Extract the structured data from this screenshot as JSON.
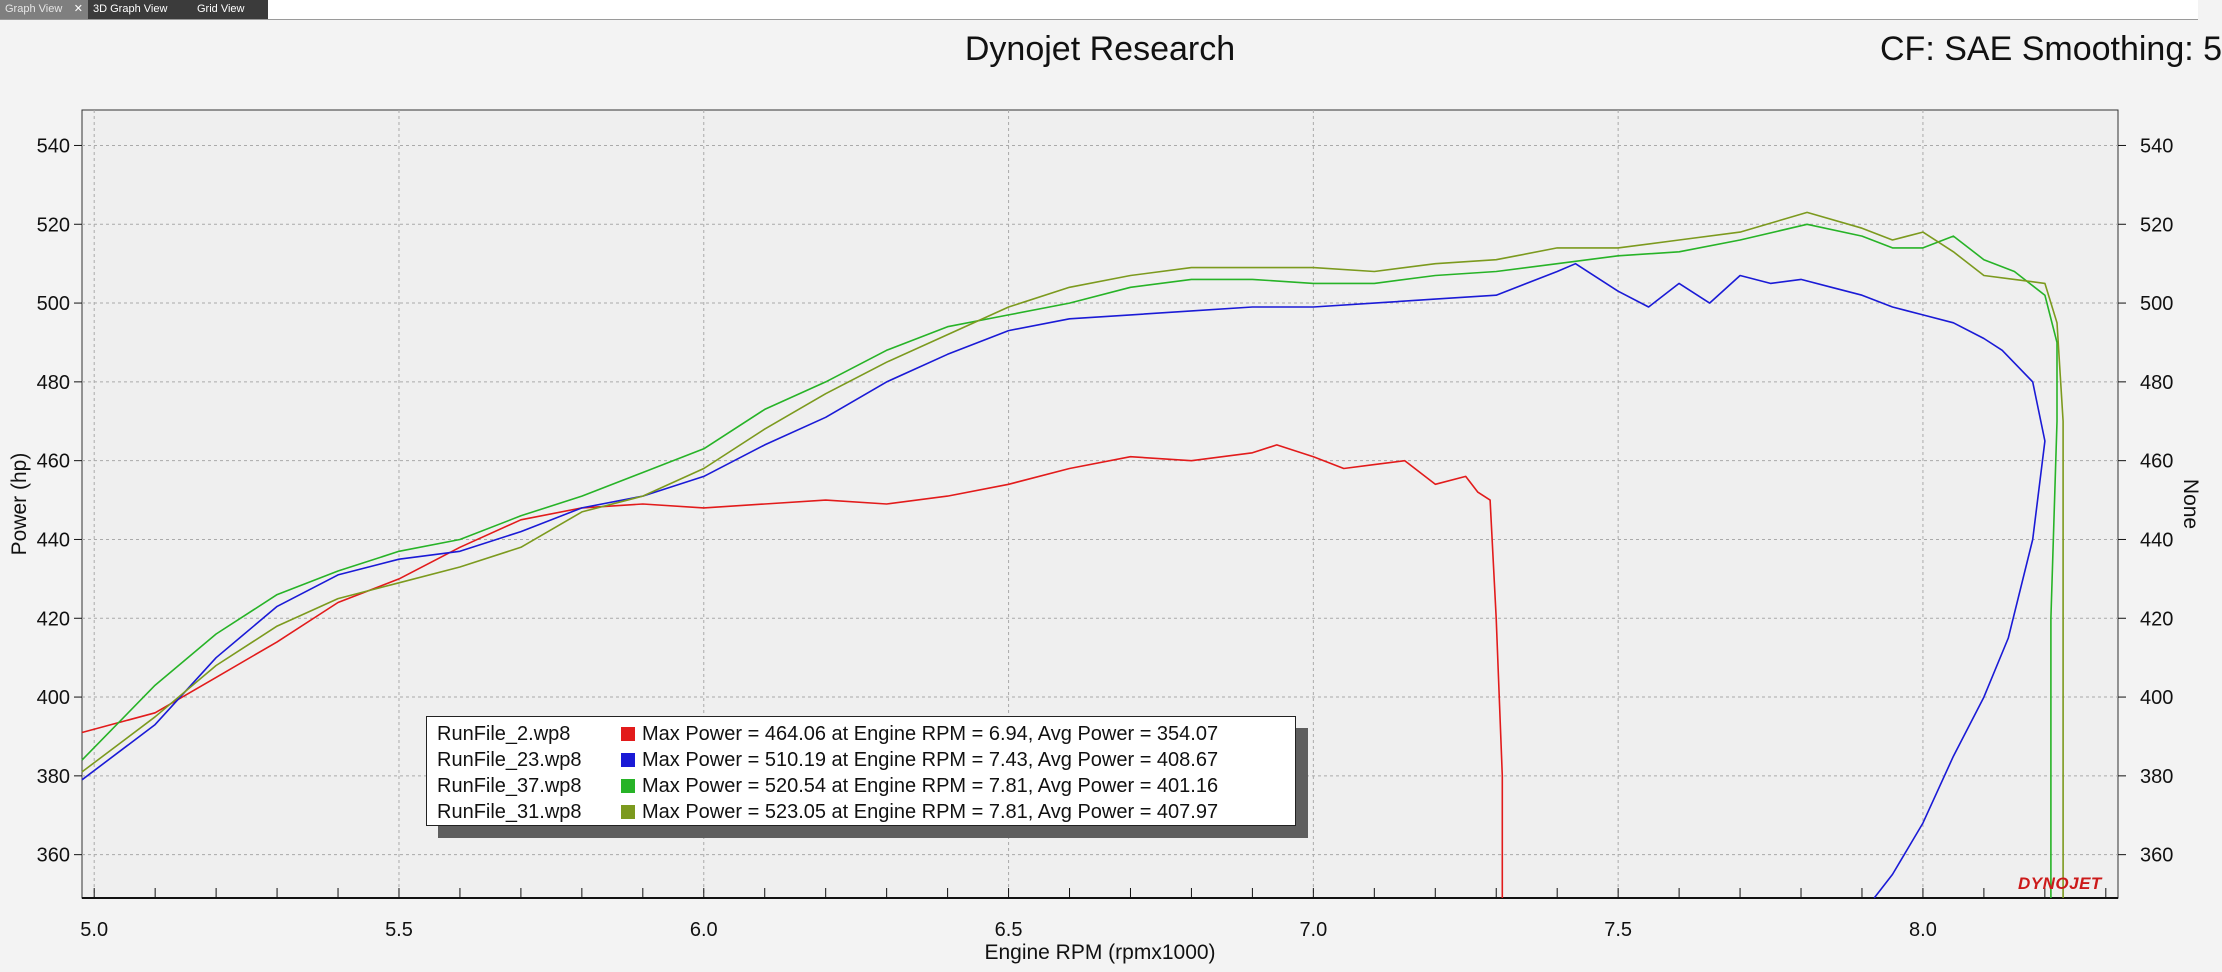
{
  "tabs": [
    {
      "label": "Graph View",
      "active": true,
      "closable": true
    },
    {
      "label": "3D Graph View",
      "active": false
    },
    {
      "label": "Grid View",
      "active": false
    }
  ],
  "header": {
    "title": "Dynojet Research",
    "cf_label": "CF: SAE Smoothing: 5"
  },
  "logo_text": "DYNOJET",
  "chart_data": {
    "type": "line",
    "title": "Dynojet Research",
    "xlabel": "Engine RPM (rpmx1000)",
    "ylabel": "Power (hp)",
    "y2label": "None",
    "xlim": [
      4.98,
      8.32
    ],
    "ylim": [
      349,
      549
    ],
    "x_ticks": [
      "5.0",
      "5.5",
      "6.0",
      "6.5",
      "7.0",
      "7.5",
      "8.0"
    ],
    "x_tick_values": [
      5.0,
      5.5,
      6.0,
      6.5,
      7.0,
      7.5,
      8.0
    ],
    "y_ticks": [
      "360",
      "380",
      "400",
      "420",
      "440",
      "460",
      "480",
      "500",
      "520",
      "540"
    ],
    "y_tick_values": [
      360,
      380,
      400,
      420,
      440,
      460,
      480,
      500,
      520,
      540
    ],
    "grid": true,
    "legend_position": "bottom-center",
    "series": [
      {
        "name": "RunFile_2.wp8",
        "color": "#e21b1b",
        "summary": "Max Power = 464.06 at Engine RPM = 6.94,  Avg Power = 354.07",
        "points": [
          [
            4.98,
            391
          ],
          [
            5.1,
            396
          ],
          [
            5.2,
            405
          ],
          [
            5.3,
            414
          ],
          [
            5.4,
            424
          ],
          [
            5.5,
            430
          ],
          [
            5.6,
            438
          ],
          [
            5.7,
            445
          ],
          [
            5.8,
            448
          ],
          [
            5.9,
            449
          ],
          [
            6.0,
            448
          ],
          [
            6.1,
            449
          ],
          [
            6.2,
            450
          ],
          [
            6.3,
            449
          ],
          [
            6.4,
            451
          ],
          [
            6.5,
            454
          ],
          [
            6.6,
            458
          ],
          [
            6.7,
            461
          ],
          [
            6.8,
            460
          ],
          [
            6.9,
            462
          ],
          [
            6.94,
            464
          ],
          [
            7.0,
            461
          ],
          [
            7.05,
            458
          ],
          [
            7.1,
            459
          ],
          [
            7.15,
            460
          ],
          [
            7.2,
            454
          ],
          [
            7.25,
            456
          ],
          [
            7.27,
            452
          ],
          [
            7.29,
            450
          ],
          [
            7.3,
            420
          ],
          [
            7.31,
            380
          ],
          [
            7.31,
            349
          ]
        ]
      },
      {
        "name": "RunFile_23.wp8",
        "color": "#1a1ad6",
        "summary": "Max Power = 510.19 at Engine RPM = 7.43,  Avg Power = 408.67",
        "points": [
          [
            4.98,
            379
          ],
          [
            5.1,
            393
          ],
          [
            5.2,
            410
          ],
          [
            5.3,
            423
          ],
          [
            5.4,
            431
          ],
          [
            5.5,
            435
          ],
          [
            5.6,
            437
          ],
          [
            5.7,
            442
          ],
          [
            5.8,
            448
          ],
          [
            5.9,
            451
          ],
          [
            6.0,
            456
          ],
          [
            6.1,
            464
          ],
          [
            6.2,
            471
          ],
          [
            6.3,
            480
          ],
          [
            6.4,
            487
          ],
          [
            6.5,
            493
          ],
          [
            6.6,
            496
          ],
          [
            6.7,
            497
          ],
          [
            6.8,
            498
          ],
          [
            6.9,
            499
          ],
          [
            7.0,
            499
          ],
          [
            7.1,
            500
          ],
          [
            7.2,
            501
          ],
          [
            7.3,
            502
          ],
          [
            7.4,
            508
          ],
          [
            7.43,
            510
          ],
          [
            7.5,
            503
          ],
          [
            7.55,
            499
          ],
          [
            7.6,
            505
          ],
          [
            7.65,
            500
          ],
          [
            7.7,
            507
          ],
          [
            7.75,
            505
          ],
          [
            7.8,
            506
          ],
          [
            7.85,
            504
          ],
          [
            7.9,
            502
          ],
          [
            7.95,
            499
          ],
          [
            8.0,
            497
          ],
          [
            8.05,
            495
          ],
          [
            8.1,
            491
          ],
          [
            8.13,
            488
          ],
          [
            8.18,
            480
          ],
          [
            8.2,
            465
          ],
          [
            8.18,
            440
          ],
          [
            8.14,
            415
          ],
          [
            8.1,
            400
          ],
          [
            8.05,
            385
          ],
          [
            8.0,
            368
          ],
          [
            7.95,
            355
          ],
          [
            7.92,
            349
          ]
        ]
      },
      {
        "name": "RunFile_37.wp8",
        "color": "#27b327",
        "summary": "Max Power = 520.54 at Engine RPM = 7.81,  Avg Power = 401.16",
        "points": [
          [
            4.98,
            384
          ],
          [
            5.1,
            403
          ],
          [
            5.2,
            416
          ],
          [
            5.3,
            426
          ],
          [
            5.4,
            432
          ],
          [
            5.5,
            437
          ],
          [
            5.6,
            440
          ],
          [
            5.7,
            446
          ],
          [
            5.8,
            451
          ],
          [
            5.9,
            457
          ],
          [
            6.0,
            463
          ],
          [
            6.1,
            473
          ],
          [
            6.2,
            480
          ],
          [
            6.3,
            488
          ],
          [
            6.4,
            494
          ],
          [
            6.5,
            497
          ],
          [
            6.6,
            500
          ],
          [
            6.7,
            504
          ],
          [
            6.8,
            506
          ],
          [
            6.9,
            506
          ],
          [
            7.0,
            505
          ],
          [
            7.1,
            505
          ],
          [
            7.2,
            507
          ],
          [
            7.3,
            508
          ],
          [
            7.4,
            510
          ],
          [
            7.5,
            512
          ],
          [
            7.6,
            513
          ],
          [
            7.7,
            516
          ],
          [
            7.81,
            520
          ],
          [
            7.9,
            517
          ],
          [
            7.95,
            514
          ],
          [
            8.0,
            514
          ],
          [
            8.05,
            517
          ],
          [
            8.1,
            511
          ],
          [
            8.15,
            508
          ],
          [
            8.2,
            502
          ],
          [
            8.22,
            490
          ],
          [
            8.22,
            470
          ],
          [
            8.21,
            420
          ],
          [
            8.21,
            349
          ]
        ]
      },
      {
        "name": "RunFile_31.wp8",
        "color": "#7c9a1e",
        "summary": "Max Power = 523.05 at Engine RPM = 7.81,  Avg Power = 407.97",
        "points": [
          [
            4.98,
            381
          ],
          [
            5.1,
            395
          ],
          [
            5.2,
            408
          ],
          [
            5.3,
            418
          ],
          [
            5.4,
            425
          ],
          [
            5.5,
            429
          ],
          [
            5.6,
            433
          ],
          [
            5.7,
            438
          ],
          [
            5.8,
            447
          ],
          [
            5.9,
            451
          ],
          [
            6.0,
            458
          ],
          [
            6.1,
            468
          ],
          [
            6.2,
            477
          ],
          [
            6.3,
            485
          ],
          [
            6.4,
            492
          ],
          [
            6.5,
            499
          ],
          [
            6.6,
            504
          ],
          [
            6.7,
            507
          ],
          [
            6.8,
            509
          ],
          [
            6.9,
            509
          ],
          [
            7.0,
            509
          ],
          [
            7.1,
            508
          ],
          [
            7.2,
            510
          ],
          [
            7.3,
            511
          ],
          [
            7.4,
            514
          ],
          [
            7.5,
            514
          ],
          [
            7.6,
            516
          ],
          [
            7.7,
            518
          ],
          [
            7.81,
            523
          ],
          [
            7.9,
            519
          ],
          [
            7.95,
            516
          ],
          [
            8.0,
            518
          ],
          [
            8.05,
            513
          ],
          [
            8.1,
            507
          ],
          [
            8.15,
            506
          ],
          [
            8.2,
            505
          ],
          [
            8.22,
            495
          ],
          [
            8.23,
            470
          ],
          [
            8.23,
            420
          ],
          [
            8.23,
            349
          ]
        ]
      }
    ]
  }
}
